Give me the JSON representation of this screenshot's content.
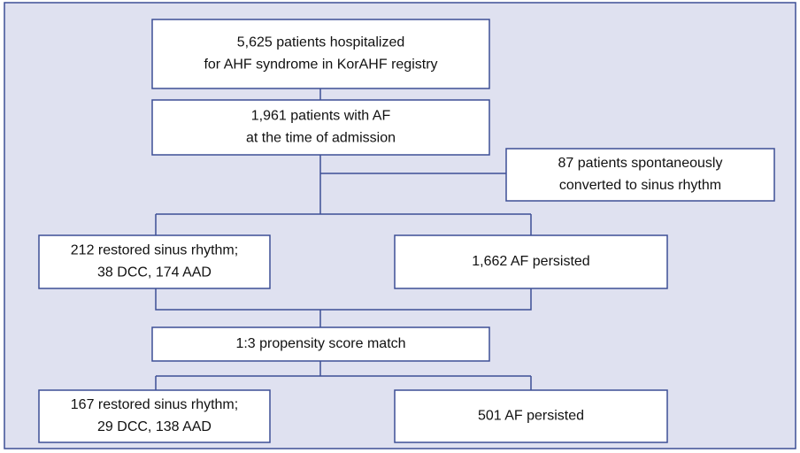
{
  "nodes": [
    {
      "lines": [
        "5,625 patients hospitalized",
        "for AHF syndrome in KorAHF registry"
      ]
    },
    {
      "lines": [
        "1,961 patients with AF",
        "at the time of admission"
      ]
    },
    {
      "lines": [
        "87 patients spontaneously",
        "converted to sinus rhythm"
      ]
    },
    {
      "lines": [
        "212 restored sinus rhythm;",
        "38 DCC, 174 AAD"
      ]
    },
    {
      "lines": [
        "1,662 AF persisted"
      ]
    },
    {
      "lines": [
        "1:3 propensity score match"
      ]
    },
    {
      "lines": [
        "167 restored sinus rhythm;",
        "29 DCC, 138 AAD"
      ]
    },
    {
      "lines": [
        "501 AF persisted"
      ]
    }
  ]
}
